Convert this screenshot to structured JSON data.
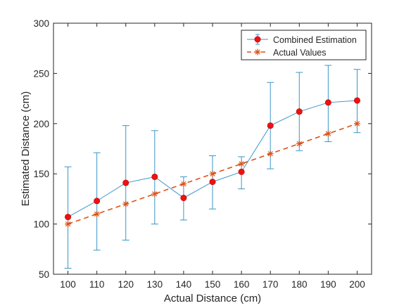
{
  "chart_data": {
    "type": "line",
    "xlabel": "Actual Distance (cm)",
    "ylabel": "Estimated Distance (cm)",
    "xlim": [
      95,
      205
    ],
    "ylim": [
      50,
      300
    ],
    "x_ticks": [
      100,
      110,
      120,
      130,
      140,
      150,
      160,
      170,
      180,
      190,
      200
    ],
    "y_ticks": [
      50,
      100,
      150,
      200,
      250,
      300
    ],
    "grid": false,
    "legend_position": "top-right",
    "x": [
      100,
      110,
      120,
      130,
      140,
      150,
      160,
      170,
      180,
      190,
      200
    ],
    "series": [
      {
        "name": "Combined Estimation",
        "style": "solid line with filled circle markers and error bars",
        "line_color": "#3a96c8",
        "marker_color": "#ee1111",
        "values": [
          107,
          123,
          141,
          147,
          126,
          142,
          152,
          198,
          212,
          221,
          223
        ],
        "error_lower": [
          56,
          74,
          84,
          100,
          104,
          115,
          135,
          155,
          173,
          182,
          191
        ],
        "error_upper": [
          157,
          171,
          198,
          193,
          147,
          168,
          167,
          241,
          251,
          258,
          254
        ]
      },
      {
        "name": "Actual Values",
        "style": "dashed line with asterisk markers",
        "line_color": "#d95319",
        "values": [
          100,
          110,
          120,
          130,
          140,
          150,
          160,
          170,
          180,
          190,
          200
        ]
      }
    ]
  }
}
